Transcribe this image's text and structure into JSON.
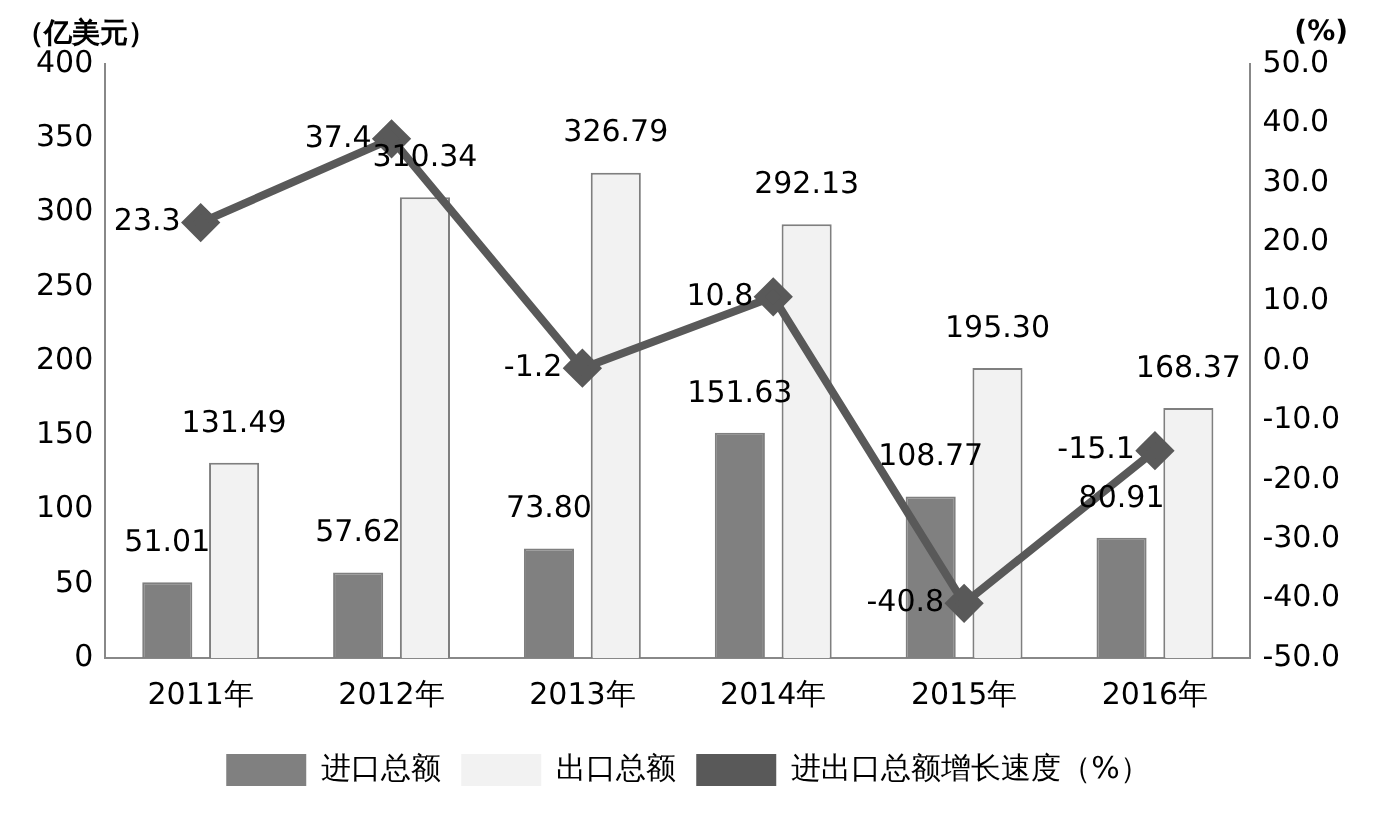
{
  "chart_data": {
    "type": "bar",
    "ylabel": "（亿美元）",
    "y2label": "(%)",
    "categories": [
      "2011年",
      "2012年",
      "2013年",
      "2014年",
      "2015年",
      "2016年"
    ],
    "series": [
      {
        "name": "进口总额",
        "color": "#808080",
        "values": [
          51.01,
          57.62,
          73.8,
          151.63,
          108.77,
          80.91
        ],
        "value_labels": [
          "51.01",
          "57.62",
          "73.80",
          "151.63",
          "108.77",
          "80.91"
        ]
      },
      {
        "name": "出口总额",
        "color": "#f2f2f2",
        "values": [
          131.49,
          310.34,
          326.79,
          292.13,
          195.3,
          168.37
        ],
        "value_labels": [
          "131.49",
          "310.34",
          "326.79",
          "292.13",
          "195.30",
          "168.37"
        ]
      },
      {
        "name": "进出口总额增长速度（%）",
        "type": "line",
        "axis": "y2",
        "color": "#595959",
        "marker": "diamond",
        "values": [
          23.3,
          37.4,
          -1.2,
          10.8,
          -40.8,
          -15.1
        ],
        "value_labels": [
          "23.3",
          "37.4",
          "-1.2",
          "10.8",
          "-40.8",
          "-15.1"
        ]
      }
    ],
    "ylim": [
      0,
      400
    ],
    "yticks": [
      0,
      50,
      100,
      150,
      200,
      250,
      300,
      350,
      400
    ],
    "y2lim": [
      -50,
      50
    ],
    "y2ticks": [
      {
        "value": -50,
        "label": "-50.0"
      },
      {
        "value": -40,
        "label": "-40.0"
      },
      {
        "value": -30,
        "label": "-30.0"
      },
      {
        "value": -20,
        "label": "-20.0"
      },
      {
        "value": -10,
        "label": "-10.0"
      },
      {
        "value": 0,
        "label": "0.0"
      },
      {
        "value": 10,
        "label": "10.0"
      },
      {
        "value": 20,
        "label": "20.0"
      },
      {
        "value": 30,
        "label": "30.0"
      },
      {
        "value": 40,
        "label": "40.0"
      },
      {
        "value": 50,
        "label": "50.0"
      }
    ],
    "grid": false,
    "legend": "bottom"
  }
}
